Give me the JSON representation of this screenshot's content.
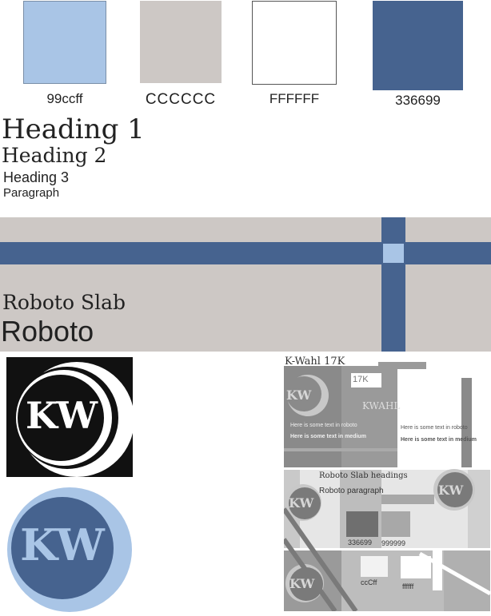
{
  "swatches": [
    {
      "color": "#a9c5e6",
      "border": "#7a8fa8",
      "label": "99ccff"
    },
    {
      "color": "#cdc8c5",
      "border": "#cdc8c5",
      "label": "CCCCCC"
    },
    {
      "color": "#ffffff",
      "border": "#555555",
      "label": "FFFFFF"
    },
    {
      "color": "#46638f",
      "border": "#46638f",
      "label": "336699"
    }
  ],
  "typography": {
    "h1": "Heading 1",
    "h2": "Heading 2",
    "h3": "Heading 3",
    "p": "Paragraph"
  },
  "banner": {
    "font1": "Roboto Slab",
    "font2": "Roboto",
    "bg": "#cdc8c5",
    "bar": "#46638f",
    "accent": "#a9c5e6"
  },
  "logos": {
    "text": "KW"
  },
  "wireframe": {
    "title": "K-Wahl 17K",
    "badge": "17K",
    "kwahl": "KWAHL",
    "text_roboto": "Here is some text in roboto",
    "text_medium": "Here is some text in medium",
    "text_roboto_2": "Here is some text in roboto",
    "text_medium_2": "Here is some text in medium",
    "slab_headings": "Roboto Slab headings",
    "roboto_paragraph": "Roboto paragraph",
    "sw1": "336699",
    "sw2": "999999",
    "sw3": "ccCff",
    "sw4": "ffffff",
    "logo": "KW"
  }
}
